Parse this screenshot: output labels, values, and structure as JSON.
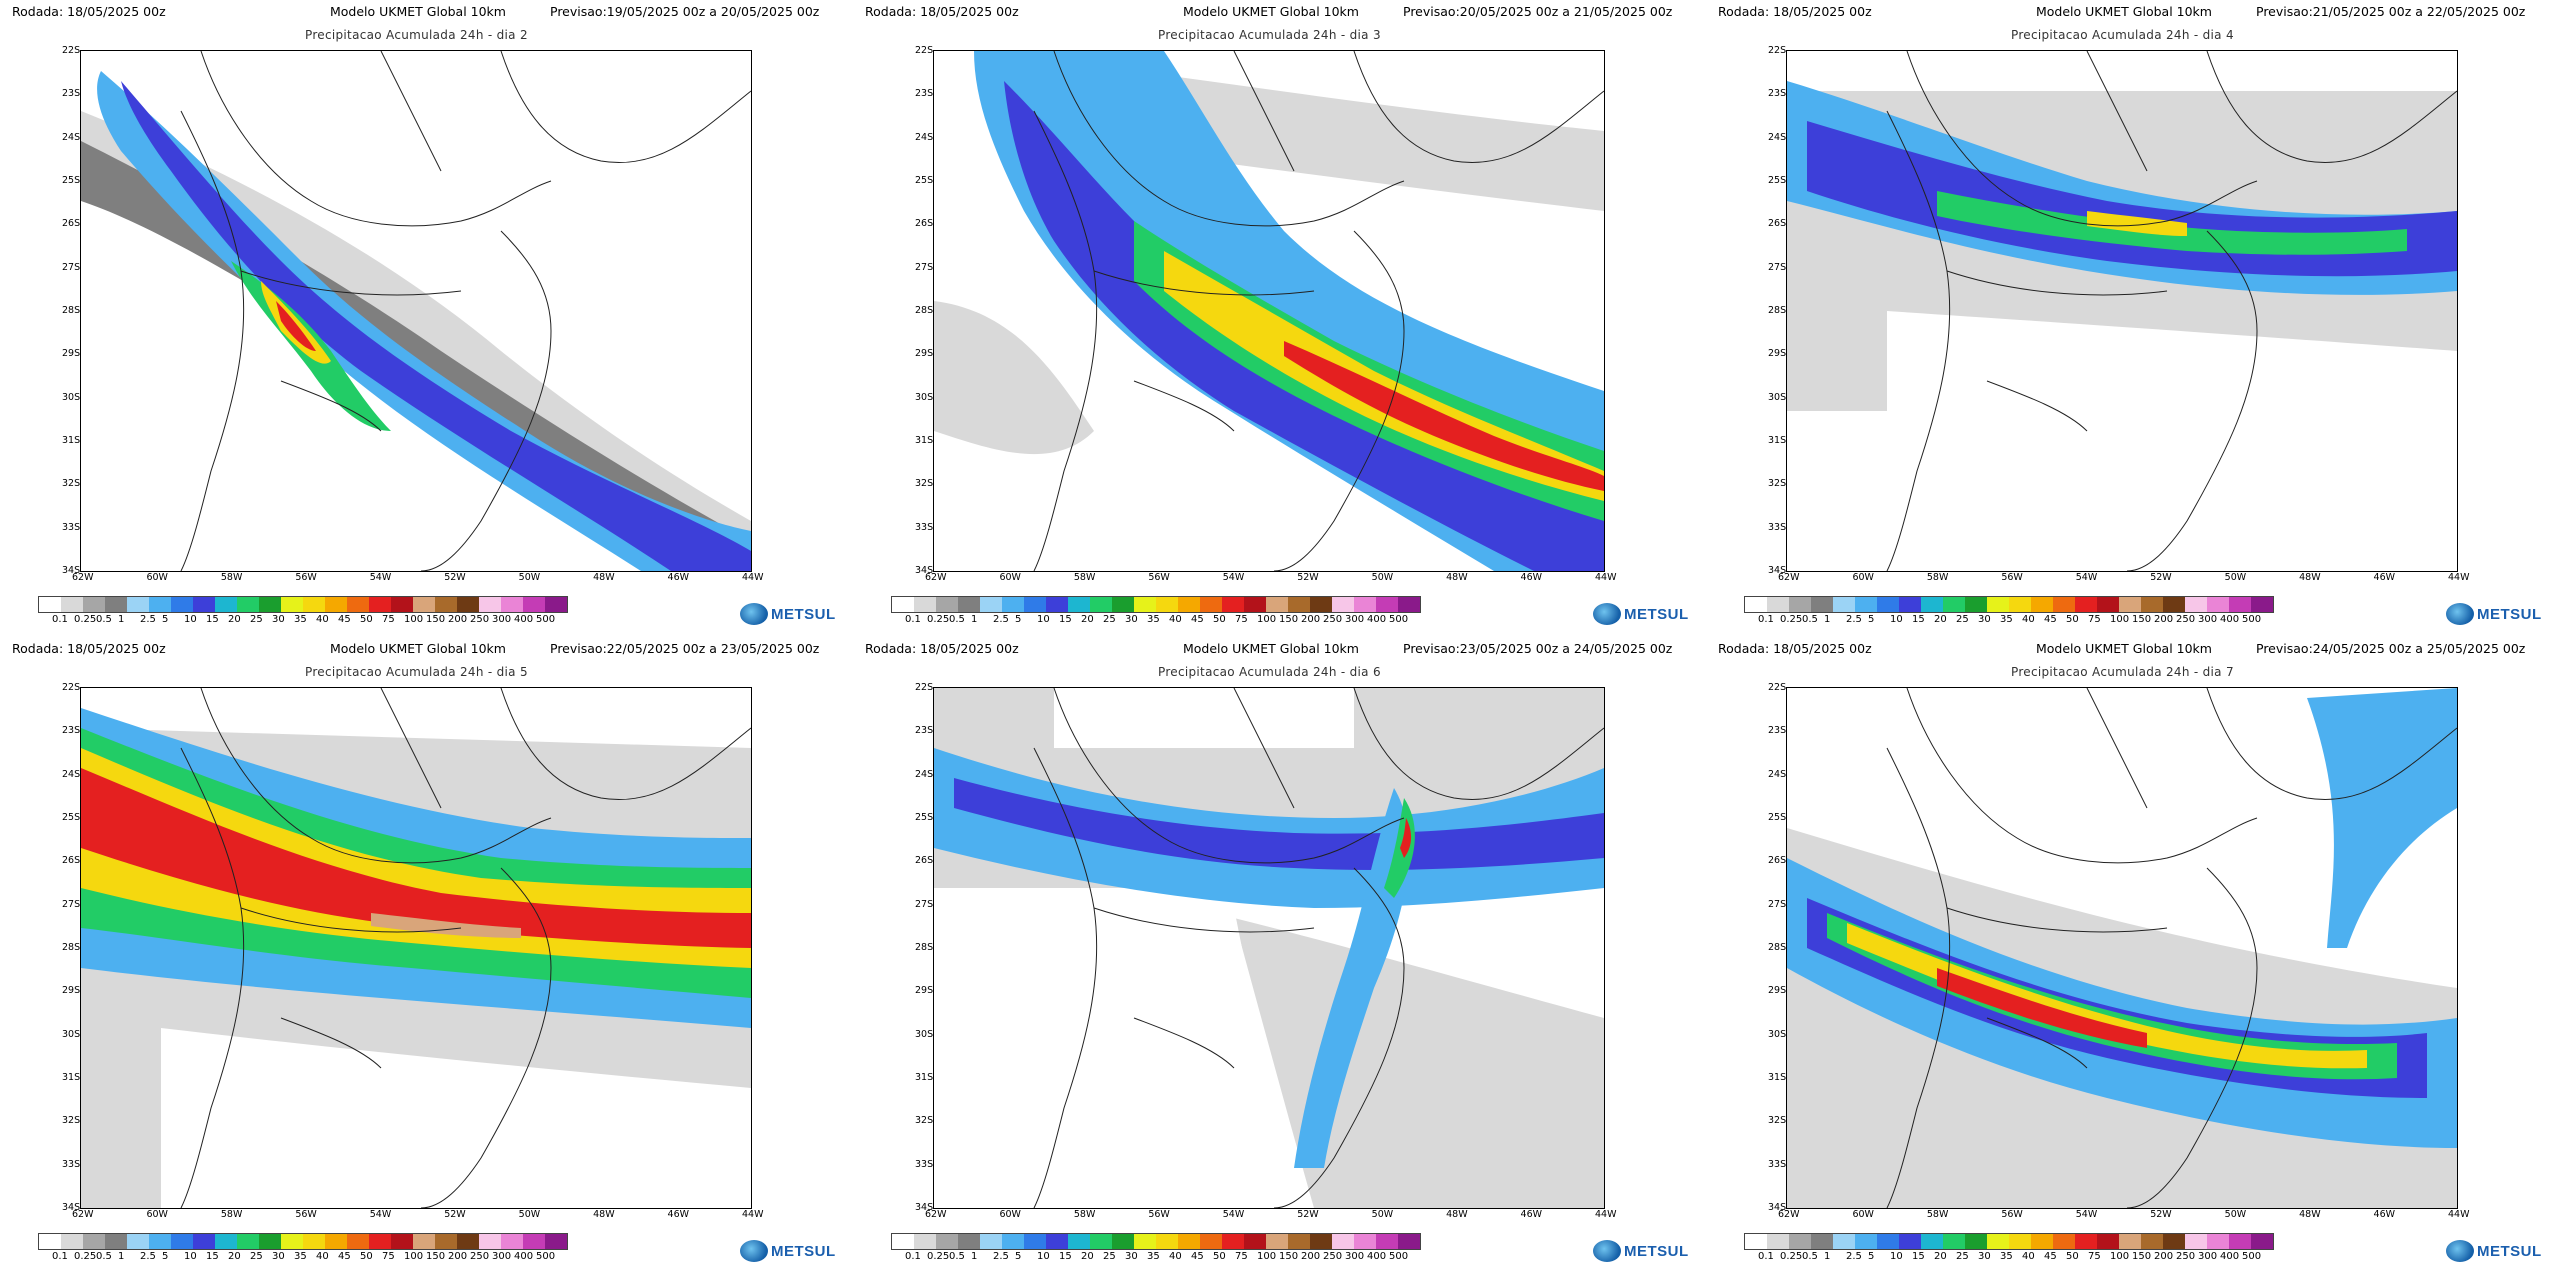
{
  "panels": [
    {
      "rodada": "Rodada: 18/05/2025 00z",
      "modelo": "Modelo UKMET Global 10km",
      "previsao": "Previsao:19/05/2025 00z a 20/05/2025 00z",
      "title": "Precipitacao Acumulada 24h - dia 2"
    },
    {
      "rodada": "Rodada: 18/05/2025 00z",
      "modelo": "Modelo UKMET Global 10km",
      "previsao": "Previsao:20/05/2025 00z a 21/05/2025 00z",
      "title": "Precipitacao Acumulada 24h - dia 3"
    },
    {
      "rodada": "Rodada: 18/05/2025 00z",
      "modelo": "Modelo UKMET Global 10km",
      "previsao": "Previsao:21/05/2025 00z a 22/05/2025 00z",
      "title": "Precipitacao Acumulada 24h - dia 4"
    },
    {
      "rodada": "Rodada: 18/05/2025 00z",
      "modelo": "Modelo UKMET Global 10km",
      "previsao": "Previsao:22/05/2025 00z a 23/05/2025 00z",
      "title": "Precipitacao Acumulada 24h - dia 5"
    },
    {
      "rodada": "Rodada: 18/05/2025 00z",
      "modelo": "Modelo UKMET Global 10km",
      "previsao": "Previsao:23/05/2025 00z a 24/05/2025 00z",
      "title": "Precipitacao Acumulada 24h - dia 6"
    },
    {
      "rodada": "Rodada: 18/05/2025 00z",
      "modelo": "Modelo UKMET Global 10km",
      "previsao": "Previsao:24/05/2025 00z a 25/05/2025 00z",
      "title": "Precipitacao Acumulada 24h - dia 7"
    }
  ],
  "lat_labels": [
    "22S",
    "23S",
    "24S",
    "25S",
    "26S",
    "27S",
    "28S",
    "29S",
    "30S",
    "31S",
    "32S",
    "33S",
    "34S"
  ],
  "lon_labels": [
    "62W",
    "60W",
    "58W",
    "56W",
    "54W",
    "52W",
    "50W",
    "48W",
    "46W",
    "44W"
  ],
  "legend_values": [
    "0.1",
    "0.25",
    "0.5",
    "1",
    "2.5",
    "5",
    "10",
    "15",
    "20",
    "25",
    "30",
    "35",
    "40",
    "45",
    "50",
    "75",
    "100",
    "150",
    "200",
    "250",
    "300",
    "400",
    "500"
  ],
  "legend_colors": [
    "#ffffff",
    "#d9d9d9",
    "#a6a6a6",
    "#7f7f7f",
    "#9bd3f5",
    "#4db0f0",
    "#2f7be8",
    "#3d3fd9",
    "#1db6d0",
    "#22cc66",
    "#1a9e2e",
    "#e6f21a",
    "#f5d80f",
    "#f5a800",
    "#ee6a10",
    "#e42020",
    "#b3121a",
    "#d9a57a",
    "#a86a2b",
    "#6e3a14",
    "#f7c6e8",
    "#ea84d6",
    "#c43cb5",
    "#8a1a8a"
  ],
  "logo_text": "METSUL"
}
